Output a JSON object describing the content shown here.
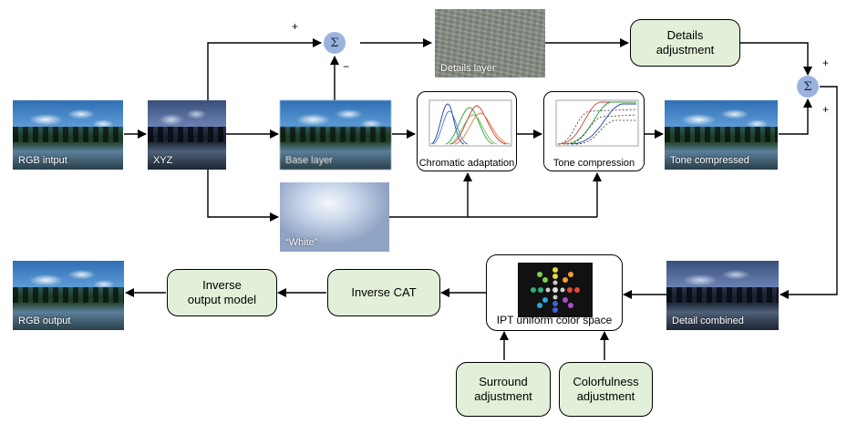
{
  "nodes": {
    "rgb_input": "RGB intput",
    "xyz": "XYZ",
    "base_layer": "Base layer",
    "white": "“White”",
    "details_layer": "Details layer",
    "details_adjustment": "Details\nadjustment",
    "chromatic_adaptation": "Chromatic adaptation",
    "tone_compression": "Tone compression",
    "tone_compressed": "Tone compressed",
    "detail_combined": "Detail combined",
    "ipt": "IPT uniform color space",
    "inverse_cat": "Inverse CAT",
    "inverse_output_model": "Inverse\noutput model",
    "rgb_output": "RGB output",
    "surround_adjustment": "Surround\nadjustment",
    "colorfulness_adjustment": "Colorfulness\nadjustment"
  },
  "sum_symbol": "Σ",
  "signs": {
    "plus": "+",
    "minus": "−"
  },
  "colors": {
    "box_fill": "#e2f0d9",
    "sum_fill": "#9bb3dc",
    "line": "#000000"
  }
}
